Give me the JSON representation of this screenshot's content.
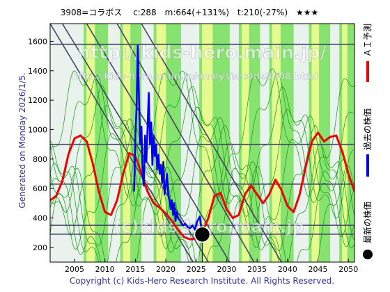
{
  "chart_data": {
    "type": "line",
    "title": "3908=コラボス　 c:288　m:664(+131%)　t:210(-27%)　★★★",
    "side_label": "Generated on Monday 2026/1/5.",
    "watermark_main": "http://kids-hero.main.jp/",
    "watermark_sub": "http://kids-hero.main.jp/analysis/code3908.html",
    "watermark_bottom": "(c)kids-hero.main.jp",
    "footer": "Copyright (c) Kids-Hero Research Institute. All Rights Reserved.",
    "legend": [
      {
        "label": "ＡＩ予測",
        "color": "#ee0000"
      },
      {
        "label": "過去の株価",
        "color": "#0000ee"
      },
      {
        "label": "最新の株価",
        "color": "#000000"
      }
    ],
    "xlim": [
      2001,
      2051
    ],
    "ylim": [
      100,
      1720
    ],
    "xticks": [
      2005,
      2010,
      2015,
      2020,
      2025,
      2030,
      2035,
      2040,
      2045,
      2050
    ],
    "yticks": [
      200,
      400,
      600,
      800,
      1000,
      1200,
      1400,
      1600
    ],
    "hlines": [
      1580,
      900,
      630,
      350,
      290
    ],
    "diagonals": [
      [
        [
          2001,
          1720
        ],
        [
          2024.5,
          100
        ]
      ],
      [
        [
          2003,
          1720
        ],
        [
          2027.0,
          100
        ]
      ],
      [
        [
          2007,
          1720
        ],
        [
          2030.5,
          100
        ]
      ],
      [
        [
          2012,
          1720
        ],
        [
          2034.5,
          100
        ]
      ],
      [
        [
          2016,
          1720
        ],
        [
          2039.0,
          100
        ]
      ]
    ],
    "colors": {
      "band": "#66dd44",
      "band_alt": "#ffff99",
      "green_line": "#119911",
      "prediction": "#ee0000",
      "history": "#0000ee",
      "grid": "#444466"
    },
    "series": [
      {
        "name": "AI予測",
        "color": "#ee0000",
        "points": [
          [
            2001,
            520
          ],
          [
            2002,
            550
          ],
          [
            2003,
            650
          ],
          [
            2004,
            830
          ],
          [
            2005,
            940
          ],
          [
            2006,
            960
          ],
          [
            2007,
            920
          ],
          [
            2008,
            770
          ],
          [
            2009,
            580
          ],
          [
            2010,
            440
          ],
          [
            2011,
            420
          ],
          [
            2012,
            520
          ],
          [
            2013,
            700
          ],
          [
            2014,
            840
          ],
          [
            2015,
            820
          ],
          [
            2016,
            700
          ],
          [
            2017,
            580
          ],
          [
            2018,
            500
          ],
          [
            2019,
            470
          ],
          [
            2020,
            430
          ],
          [
            2021,
            380
          ],
          [
            2022,
            320
          ],
          [
            2023,
            270
          ],
          [
            2024,
            255
          ],
          [
            2025,
            262
          ],
          [
            2026,
            300
          ],
          [
            2027,
            400
          ],
          [
            2028,
            550
          ],
          [
            2029,
            570
          ],
          [
            2030,
            460
          ],
          [
            2031,
            400
          ],
          [
            2032,
            420
          ],
          [
            2033,
            560
          ],
          [
            2034,
            620
          ],
          [
            2035,
            560
          ],
          [
            2036,
            500
          ],
          [
            2037,
            560
          ],
          [
            2038,
            660
          ],
          [
            2039,
            590
          ],
          [
            2040,
            480
          ],
          [
            2041,
            440
          ],
          [
            2042,
            560
          ],
          [
            2043,
            750
          ],
          [
            2044,
            920
          ],
          [
            2045,
            980
          ],
          [
            2046,
            920
          ],
          [
            2047,
            950
          ],
          [
            2048,
            960
          ],
          [
            2049,
            850
          ],
          [
            2050,
            700
          ],
          [
            2051,
            580
          ]
        ]
      },
      {
        "name": "過去の株価",
        "color": "#0000ee",
        "points": [
          [
            2014.8,
            580
          ],
          [
            2015.0,
            960
          ],
          [
            2015.2,
            1150
          ],
          [
            2015.4,
            1570
          ],
          [
            2015.6,
            1200
          ],
          [
            2015.8,
            900
          ],
          [
            2016.0,
            1020
          ],
          [
            2016.2,
            700
          ],
          [
            2016.4,
            620
          ],
          [
            2016.6,
            960
          ],
          [
            2016.8,
            780
          ],
          [
            2017.0,
            1000
          ],
          [
            2017.2,
            1250
          ],
          [
            2017.4,
            900
          ],
          [
            2017.6,
            1050
          ],
          [
            2017.8,
            760
          ],
          [
            2018.0,
            960
          ],
          [
            2018.2,
            820
          ],
          [
            2018.4,
            900
          ],
          [
            2018.6,
            730
          ],
          [
            2018.8,
            830
          ],
          [
            2019.0,
            700
          ],
          [
            2019.2,
            760
          ],
          [
            2019.4,
            640
          ],
          [
            2019.6,
            780
          ],
          [
            2019.8,
            560
          ],
          [
            2020.0,
            620
          ],
          [
            2020.2,
            700
          ],
          [
            2020.4,
            560
          ],
          [
            2020.6,
            520
          ],
          [
            2020.8,
            460
          ],
          [
            2021.0,
            520
          ],
          [
            2021.2,
            420
          ],
          [
            2021.4,
            500
          ],
          [
            2021.6,
            380
          ],
          [
            2021.8,
            440
          ],
          [
            2022.0,
            400
          ],
          [
            2022.4,
            380
          ],
          [
            2022.8,
            350
          ],
          [
            2023.2,
            360
          ],
          [
            2023.6,
            340
          ],
          [
            2024.0,
            330
          ],
          [
            2024.4,
            350
          ],
          [
            2024.8,
            320
          ],
          [
            2025.2,
            380
          ],
          [
            2025.6,
            410
          ],
          [
            2025.8,
            340
          ],
          [
            2026.0,
            290
          ]
        ]
      }
    ],
    "latest_point": {
      "x": 2026.0,
      "y": 288
    }
  }
}
